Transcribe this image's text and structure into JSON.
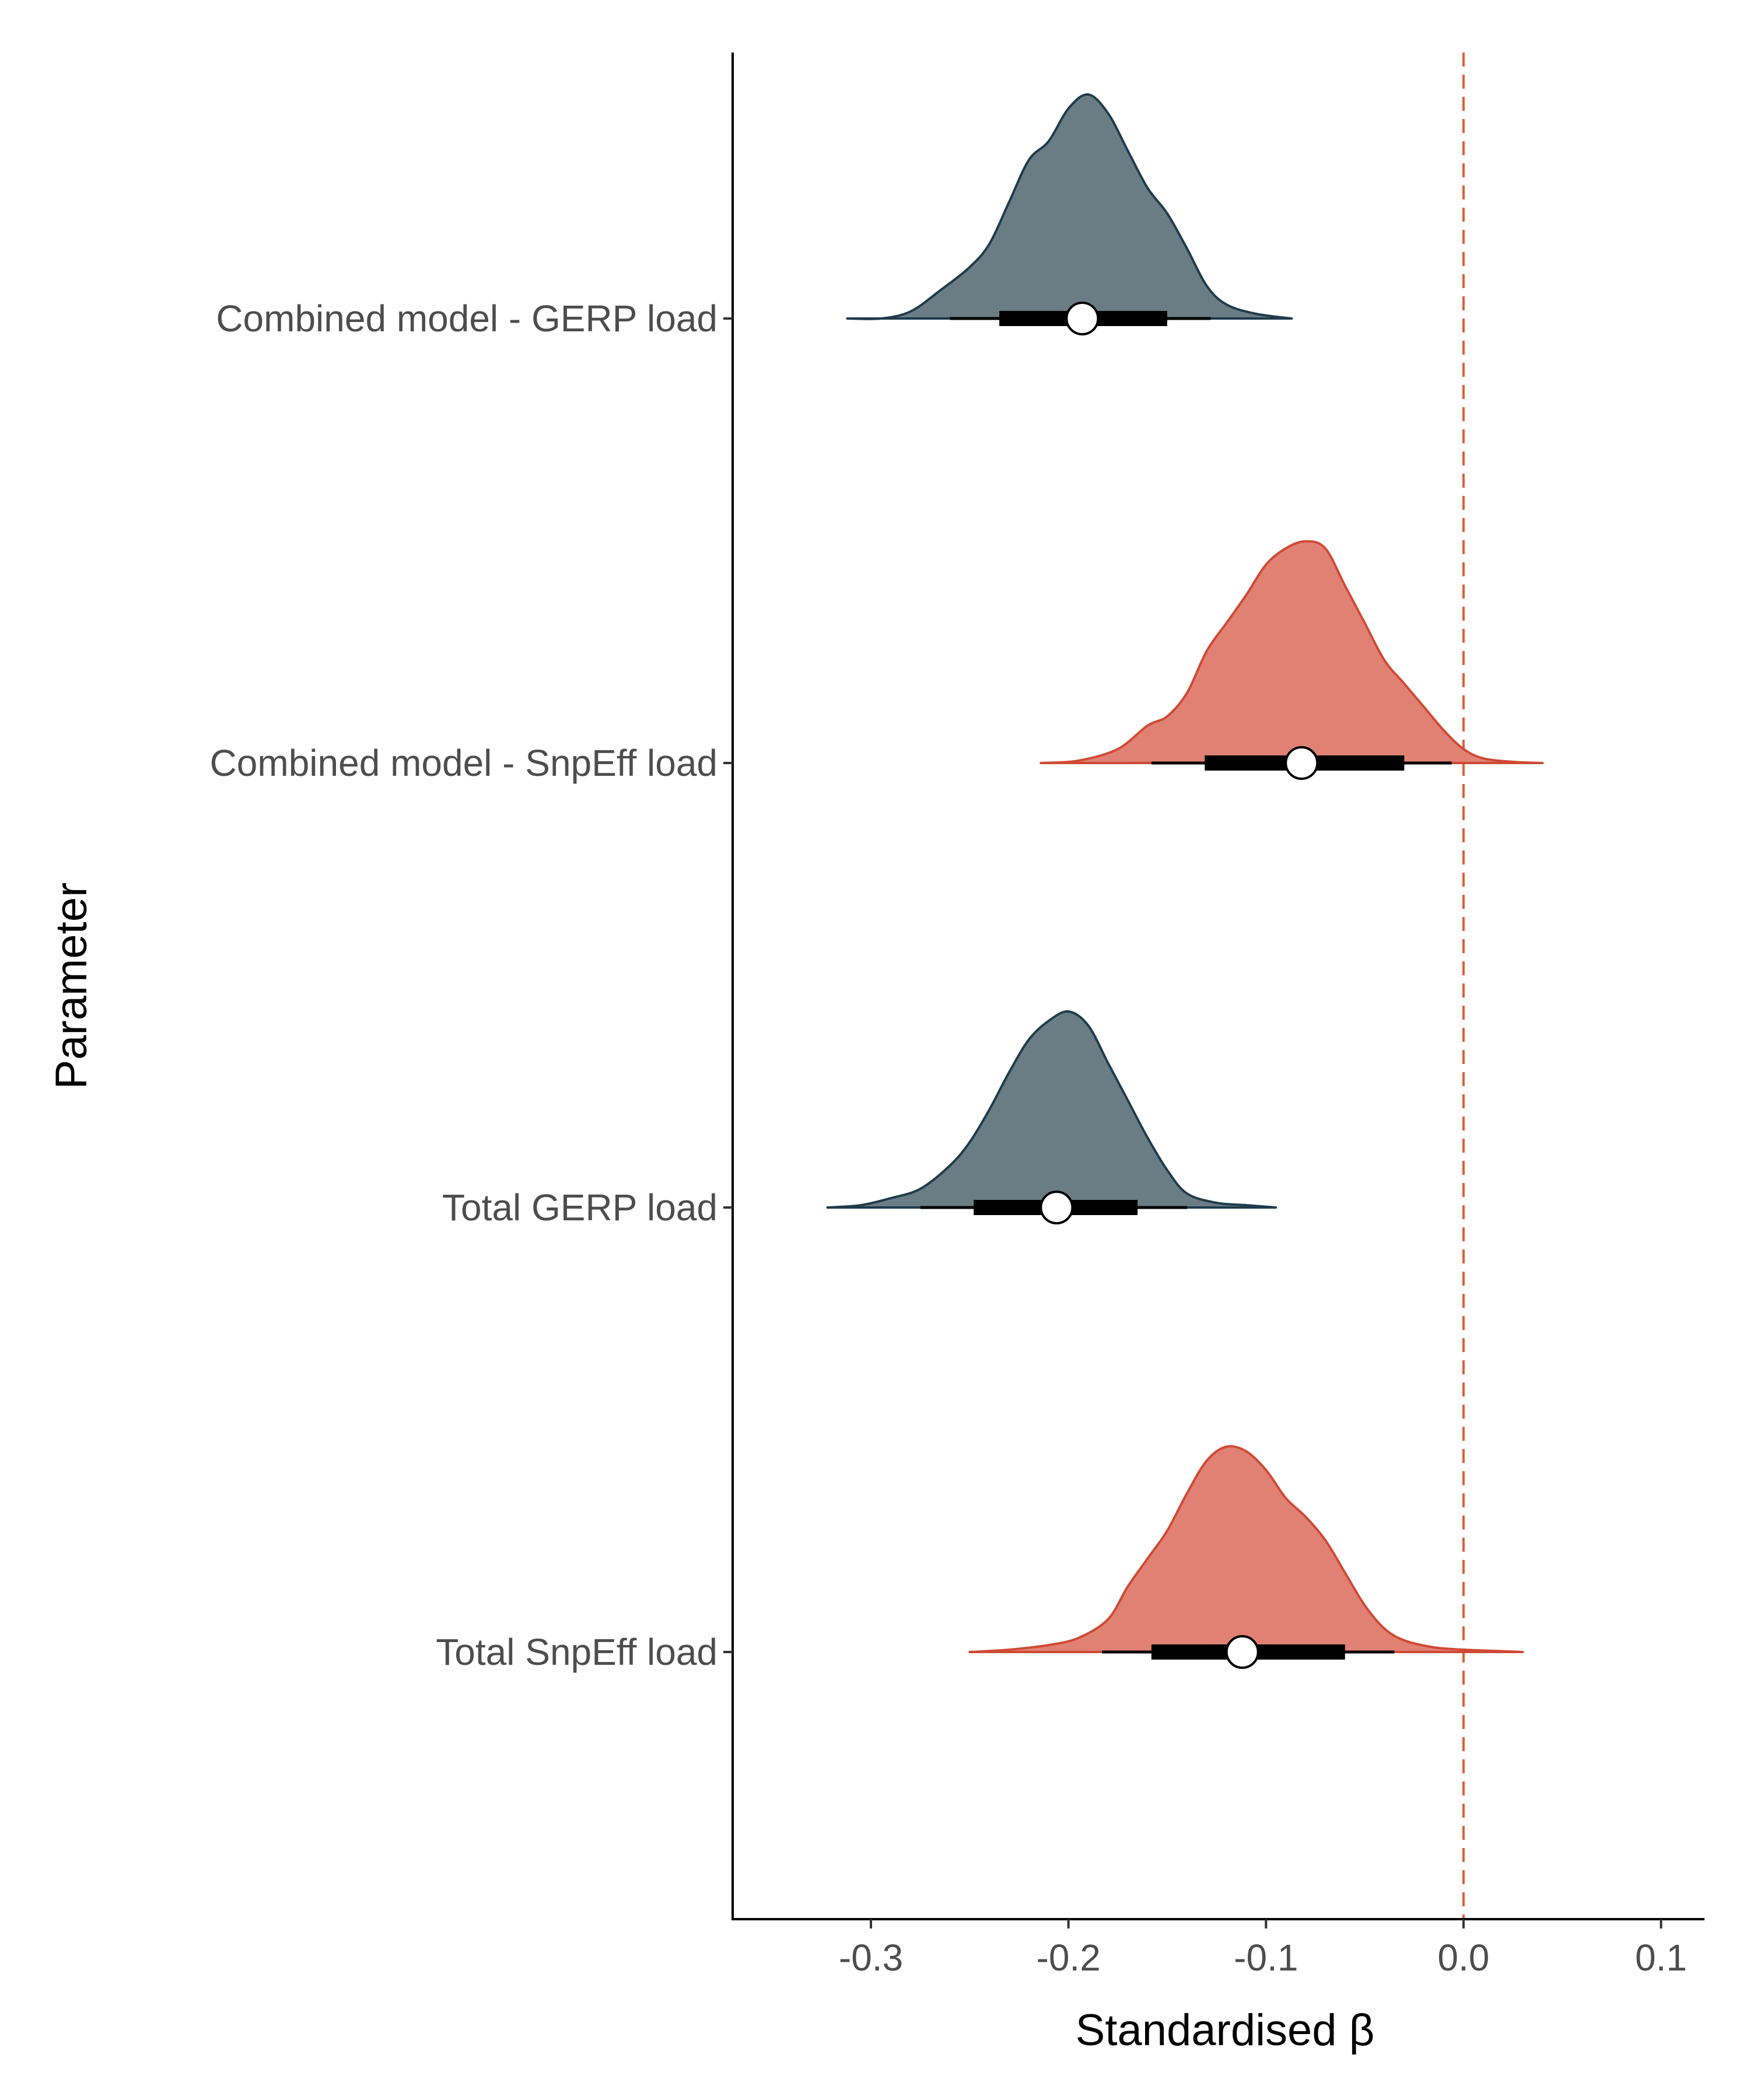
{
  "chart_data": {
    "type": "halfeye",
    "xlabel": "Standardised β",
    "ylabel": "Parameter",
    "xlim": [
      -0.37,
      0.122
    ],
    "x_ticks": [
      -0.3,
      -0.2,
      -0.1,
      0.0,
      0.1
    ],
    "x_tick_labels": [
      "-0.3",
      "-0.2",
      "-0.1",
      "0.0",
      "0.1"
    ],
    "reference_line": {
      "x": 0.0,
      "style": "dashed",
      "color": "#d9603b"
    },
    "grid": false,
    "legend": "none",
    "categories": [
      "Combined model - GERP load",
      "Combined model - SnpEff load",
      "Total GERP load",
      "Total SnpEff load"
    ],
    "series": [
      {
        "category": "Combined model - GERP load",
        "fill": "#6a7d85",
        "stroke": "#1f3b4d",
        "median": -0.193,
        "interval_66": [
          -0.235,
          -0.15
        ],
        "interval_95": [
          -0.26,
          -0.128
        ],
        "density_range": [
          -0.312,
          -0.087
        ],
        "density": [
          [
            -0.312,
            0.0
          ],
          [
            -0.295,
            0.0
          ],
          [
            -0.28,
            0.03
          ],
          [
            -0.265,
            0.12
          ],
          [
            -0.25,
            0.22
          ],
          [
            -0.24,
            0.32
          ],
          [
            -0.23,
            0.5
          ],
          [
            -0.22,
            0.68
          ],
          [
            -0.21,
            0.76
          ],
          [
            -0.2,
            0.9
          ],
          [
            -0.19,
            0.96
          ],
          [
            -0.18,
            0.88
          ],
          [
            -0.17,
            0.72
          ],
          [
            -0.16,
            0.56
          ],
          [
            -0.15,
            0.45
          ],
          [
            -0.14,
            0.3
          ],
          [
            -0.13,
            0.14
          ],
          [
            -0.12,
            0.06
          ],
          [
            -0.105,
            0.02
          ],
          [
            -0.087,
            0.0
          ]
        ]
      },
      {
        "category": "Combined model - SnpEff load",
        "fill": "#e08173",
        "stroke": "#cf4a35",
        "median": -0.082,
        "interval_66": [
          -0.131,
          -0.03
        ],
        "interval_95": [
          -0.158,
          -0.006
        ],
        "density_range": [
          -0.214,
          0.04
        ],
        "density": [
          [
            -0.214,
            0.0
          ],
          [
            -0.195,
            0.01
          ],
          [
            -0.175,
            0.06
          ],
          [
            -0.16,
            0.16
          ],
          [
            -0.15,
            0.2
          ],
          [
            -0.14,
            0.3
          ],
          [
            -0.13,
            0.48
          ],
          [
            -0.12,
            0.6
          ],
          [
            -0.11,
            0.72
          ],
          [
            -0.1,
            0.85
          ],
          [
            -0.09,
            0.92
          ],
          [
            -0.08,
            0.95
          ],
          [
            -0.07,
            0.92
          ],
          [
            -0.06,
            0.76
          ],
          [
            -0.05,
            0.6
          ],
          [
            -0.04,
            0.44
          ],
          [
            -0.03,
            0.34
          ],
          [
            -0.02,
            0.24
          ],
          [
            -0.01,
            0.14
          ],
          [
            0.0,
            0.06
          ],
          [
            0.01,
            0.02
          ],
          [
            0.025,
            0.005
          ],
          [
            0.04,
            0.0
          ]
        ]
      },
      {
        "category": "Total GERP load",
        "fill": "#6a7d85",
        "stroke": "#1f3b4d",
        "median": -0.206,
        "interval_66": [
          -0.248,
          -0.165
        ],
        "interval_95": [
          -0.275,
          -0.14
        ],
        "density_range": [
          -0.322,
          -0.095
        ],
        "density": [
          [
            -0.322,
            0.0
          ],
          [
            -0.305,
            0.01
          ],
          [
            -0.29,
            0.04
          ],
          [
            -0.275,
            0.08
          ],
          [
            -0.26,
            0.18
          ],
          [
            -0.25,
            0.28
          ],
          [
            -0.24,
            0.42
          ],
          [
            -0.23,
            0.58
          ],
          [
            -0.22,
            0.72
          ],
          [
            -0.21,
            0.8
          ],
          [
            -0.2,
            0.84
          ],
          [
            -0.19,
            0.78
          ],
          [
            -0.18,
            0.62
          ],
          [
            -0.17,
            0.46
          ],
          [
            -0.16,
            0.3
          ],
          [
            -0.15,
            0.16
          ],
          [
            -0.14,
            0.06
          ],
          [
            -0.125,
            0.02
          ],
          [
            -0.11,
            0.01
          ],
          [
            -0.095,
            0.0
          ]
        ]
      },
      {
        "category": "Total SnpEff load",
        "fill": "#e08173",
        "stroke": "#cf4a35",
        "median": -0.112,
        "interval_66": [
          -0.158,
          -0.06
        ],
        "interval_95": [
          -0.183,
          -0.035
        ],
        "density_range": [
          -0.25,
          0.03
        ],
        "density": [
          [
            -0.25,
            0.0
          ],
          [
            -0.23,
            0.01
          ],
          [
            -0.21,
            0.03
          ],
          [
            -0.195,
            0.06
          ],
          [
            -0.18,
            0.14
          ],
          [
            -0.17,
            0.28
          ],
          [
            -0.16,
            0.4
          ],
          [
            -0.15,
            0.52
          ],
          [
            -0.14,
            0.68
          ],
          [
            -0.13,
            0.82
          ],
          [
            -0.12,
            0.88
          ],
          [
            -0.11,
            0.86
          ],
          [
            -0.1,
            0.78
          ],
          [
            -0.09,
            0.66
          ],
          [
            -0.08,
            0.58
          ],
          [
            -0.07,
            0.48
          ],
          [
            -0.06,
            0.34
          ],
          [
            -0.05,
            0.2
          ],
          [
            -0.04,
            0.1
          ],
          [
            -0.03,
            0.05
          ],
          [
            -0.015,
            0.02
          ],
          [
            0.0,
            0.01
          ],
          [
            0.015,
            0.005
          ],
          [
            0.03,
            0.0
          ]
        ]
      }
    ]
  }
}
